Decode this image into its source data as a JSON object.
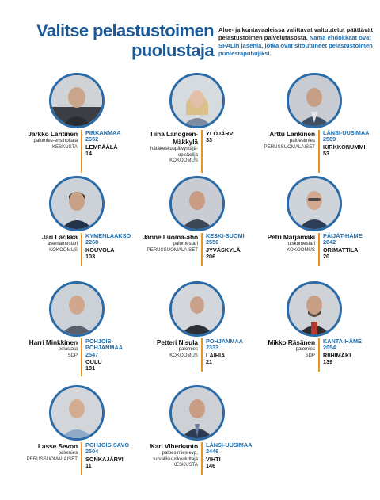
{
  "header": {
    "title_line1": "Valitse pelastustoimen",
    "title_line2": "puolustaja",
    "intro_dark": "Alue- ja kuntavaaleissa valittavat valtuutetut päättävät pelastustoimen palvelutasosta.",
    "intro_blue": "Nämä ehdokkaat ovat SPALin jäseniä, jotka ovat sitoutuneet pelastustoimen puolestapuhujiksi."
  },
  "colors": {
    "title_blue": "#1d5a95",
    "district_blue": "#1d6fb0",
    "divider_orange": "#e8941e",
    "photo_ring": "#2a6aa6"
  },
  "candidates": [
    {
      "name": "Jarkko Lahtinen",
      "title": "palomies-ensihoitaja",
      "party": "KESKUSTA",
      "district": "PIRKANMAA",
      "number": "2652",
      "city": "LEMPÄÄLÄ",
      "votes": "14"
    },
    {
      "name": "Tiina Landgren-Mäkkylä",
      "name_line1": "Tiina Landgren-",
      "name_line2": "Mäkkylä",
      "title_line1": "hätäkeskuspäivystäjä-",
      "title_line2": "opiskelija",
      "party": "KOKOOMUS",
      "district": "",
      "number": "",
      "city": "YLÖJÄRVI",
      "votes": "33"
    },
    {
      "name": "Arttu Lankinen",
      "title": "paloesimies",
      "party": "PERUSSUOMALAISET",
      "district": "LÄNSI-UUSIMAA",
      "number": "2589",
      "city": "KIRKKONUMMI",
      "votes": "53"
    },
    {
      "name": "Jari Larikka",
      "title": "asemamestari",
      "party": "KOKOOMUS",
      "district": "KYMENLAAKSO",
      "number": "2268",
      "city": "KOUVOLA",
      "votes": "103"
    },
    {
      "name": "Janne Luoma-aho",
      "title": "palomestari",
      "party": "PERUSSUOMALAISET",
      "district": "KESKI-SUOMI",
      "number": "2550",
      "city": "JYVÄSKYLÄ",
      "votes": "206"
    },
    {
      "name": "Petri Marjamäki",
      "title": "ruiskumestari",
      "party": "KOKOOMUS",
      "district": "PÄIJÄT-HÄME",
      "number": "2042",
      "city": "ORIMATTILA",
      "votes": "20"
    },
    {
      "name": "Harri Minkkinen",
      "title": "pelastaja",
      "party": "SDP",
      "district_line1": "POHJOIS-",
      "district_line2": "POHJANMAA",
      "number": "2547",
      "city": "OULU",
      "votes": "181"
    },
    {
      "name": "Petteri Nisula",
      "title": "palomies",
      "party": "KOKOOMUS",
      "district": "POHJANMAA",
      "number": "2333",
      "city": "LAIHIA",
      "votes": "21"
    },
    {
      "name": "Mikko Räsänen",
      "title": "palomies",
      "party": "SDP",
      "district": "KANTA-HÄME",
      "number": "2054",
      "city": "RIIHIMÄKI",
      "votes": "139"
    },
    {
      "name": "Lasse Sevon",
      "title": "palomies",
      "party": "PERUSSUOMALAISET",
      "district": "POHJOIS-SAVO",
      "number": "2504",
      "city": "SONKAJÄRVI",
      "votes": "11"
    },
    {
      "name": "Kari Viherkanto",
      "title_line1": "paloesimies evp,",
      "title_line2": "turvallisuuskouluttaja",
      "party": "KESKUSTA",
      "district": "LÄNSI-UUSIMAA",
      "number": "2446",
      "city": "VIHTI",
      "votes": "146"
    }
  ]
}
